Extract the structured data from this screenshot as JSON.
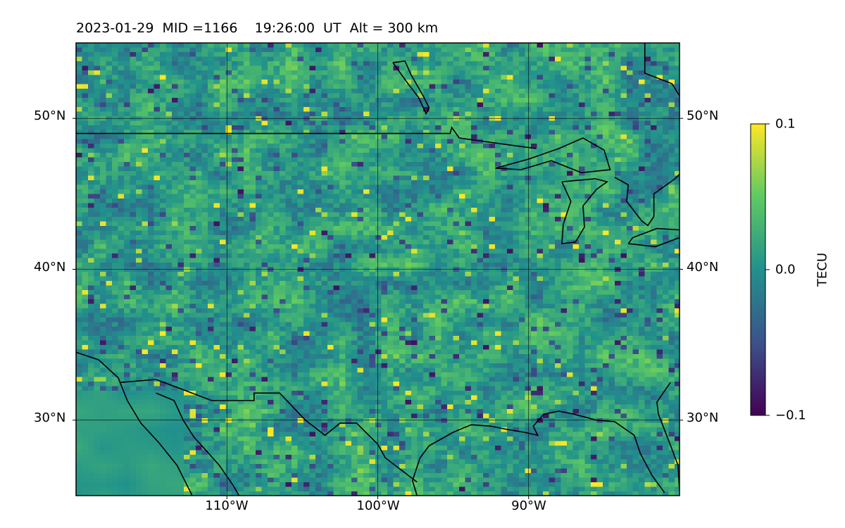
{
  "title": "2023-01-29  MID =1166    19:26:00  UT  Alt = 300 km",
  "map": {
    "projection": "plate carree",
    "lon_range": [
      -120,
      -80
    ],
    "lat_range": [
      25,
      55
    ],
    "lat_ticks": [
      {
        "value": 30,
        "label": "30°N"
      },
      {
        "value": 40,
        "label": "40°N"
      },
      {
        "value": 50,
        "label": "50°N"
      }
    ],
    "lon_ticks": [
      {
        "value": -110,
        "label": "110°W"
      },
      {
        "value": -100,
        "label": "100°W"
      },
      {
        "value": -90,
        "label": "90°W"
      }
    ],
    "gridlines": true,
    "coastlines": true,
    "country_borders": true
  },
  "colorbar": {
    "label": "TECU",
    "min": -0.1,
    "max": 0.1,
    "colormap": "viridis",
    "ticks": [
      {
        "value": 0.1,
        "label": "0.1"
      },
      {
        "value": 0.0,
        "label": "0.0"
      },
      {
        "value": -0.1,
        "label": "−0.1"
      }
    ]
  },
  "field": {
    "description_units": "TECU",
    "value_range": [
      -0.1,
      0.1
    ],
    "grid": "approx. 0.5° × 0.3° cells, mostly values near 0.0 with scattered positive (yellow) and negative (purple) anomalies"
  },
  "colors": {
    "colormap_stops": [
      "#440154",
      "#3b528b",
      "#21918c",
      "#5ec962",
      "#fde725"
    ],
    "coastline": "#000000"
  }
}
